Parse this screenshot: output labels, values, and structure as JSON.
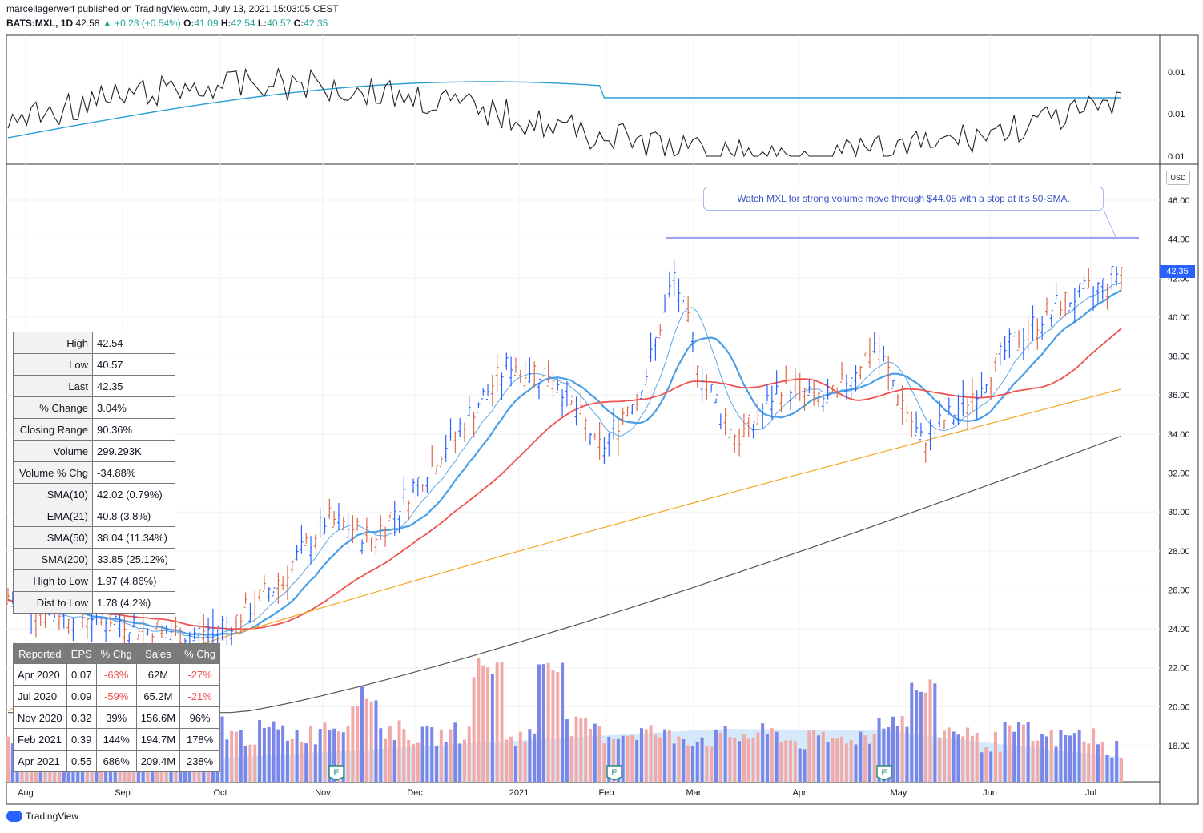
{
  "header": {
    "line1": "marcellagerwerf published on TradingView.com, July 13, 2021 15:03:05 CEST",
    "symbol": "BATS:MXL, 1D",
    "price": "42.58",
    "change": "+0.23 (+0.54%)",
    "o_label": "O:",
    "o": "41.09",
    "h_label": "H:",
    "h": "42.54",
    "l_label": "L:",
    "l": "40.57",
    "c_label": "C:",
    "c": "42.35"
  },
  "colors": {
    "up": "#2962ff",
    "down": "#e0674a",
    "sma10": "#5aa7e8",
    "ema21": "#4a9fe6",
    "sma50": "#ef5350",
    "sma200": "#f5a623",
    "sma_long": "#555555",
    "rs_line": "#222222",
    "rs_ma": "#2a9fd8"
  },
  "annotation": "Watch MXL for strong volume move through $44.05 with a stop at it's 50-SMA.",
  "currency": "USD",
  "last_price_tag": "42.35",
  "stats": [
    {
      "k": "High",
      "v": "42.54"
    },
    {
      "k": "Low",
      "v": "40.57"
    },
    {
      "k": "Last",
      "v": "42.35"
    },
    {
      "k": "% Change",
      "v": "3.04%"
    },
    {
      "k": "Closing Range",
      "v": "90.36%"
    },
    {
      "k": "Volume",
      "v": "299.293K"
    },
    {
      "k": "Volume % Chg",
      "v": "-34.88%"
    },
    {
      "k": "SMA(10)",
      "v": "42.02 (0.79%)"
    },
    {
      "k": "EMA(21)",
      "v": "40.8 (3.8%)"
    },
    {
      "k": "SMA(50)",
      "v": "38.04 (11.34%)"
    },
    {
      "k": "SMA(200)",
      "v": "33.85 (25.12%)"
    },
    {
      "k": "High to Low",
      "v": "1.97 (4.86%)"
    },
    {
      "k": "Dist to Low",
      "v": "1.78 (4.2%)"
    }
  ],
  "earnings": {
    "headers": [
      "Reported",
      "EPS",
      "% Chg",
      "Sales",
      "% Chg"
    ],
    "rows": [
      [
        "Apr 2020",
        "0.07",
        "-63%",
        "62M",
        "-27%"
      ],
      [
        "Jul 2020",
        "0.09",
        "-59%",
        "65.2M",
        "-21%"
      ],
      [
        "Nov 2020",
        "0.32",
        "39%",
        "156.6M",
        "96%"
      ],
      [
        "Feb 2021",
        "0.39",
        "144%",
        "194.7M",
        "178%"
      ],
      [
        "Apr 2021",
        "0.55",
        "686%",
        "209.4M",
        "238%"
      ]
    ]
  },
  "footer": {
    "brand": "TradingView"
  },
  "chart_data": {
    "type": "ohlc",
    "ylim": [
      16.5,
      47
    ],
    "y_ticks": [
      "46.00",
      "44.00",
      "42.00",
      "40.00",
      "38.00",
      "36.00",
      "34.00",
      "32.00",
      "30.00",
      "28.00",
      "26.00",
      "24.00",
      "22.00",
      "20.00",
      "18.00"
    ],
    "rs_ticks": [
      "0.01",
      "0.01",
      "0.01",
      "0.01"
    ],
    "x_ticks": [
      "Aug",
      "Sep",
      "Oct",
      "Nov",
      "Dec",
      "2021",
      "Feb",
      "Mar",
      "Apr",
      "May",
      "Jun",
      "Jul"
    ],
    "earnings_markers": [
      "Nov",
      "Feb",
      "May"
    ],
    "earnings_label": "E",
    "resistance_line": 44.05,
    "price_series": [
      {
        "m": 0,
        "v": 25.5
      },
      {
        "m": 0.5,
        "v": 24.8
      },
      {
        "m": 1,
        "v": 24.5
      },
      {
        "m": 1.5,
        "v": 24.0
      },
      {
        "m": 2,
        "v": 23.5
      },
      {
        "m": 2.5,
        "v": 24.3
      },
      {
        "m": 3,
        "v": 26.5
      },
      {
        "m": 3.5,
        "v": 29.5
      },
      {
        "m": 4,
        "v": 28.5
      },
      {
        "m": 4.5,
        "v": 31.5
      },
      {
        "m": 5,
        "v": 34.5
      },
      {
        "m": 5.5,
        "v": 37.5
      },
      {
        "m": 6,
        "v": 36.8
      },
      {
        "m": 6.5,
        "v": 33.0
      },
      {
        "m": 7,
        "v": 37.0
      },
      {
        "m": 7.3,
        "v": 42.0
      },
      {
        "m": 7.6,
        "v": 37.0
      },
      {
        "m": 8,
        "v": 33.5
      },
      {
        "m": 8.5,
        "v": 36.5
      },
      {
        "m": 9,
        "v": 35.5
      },
      {
        "m": 9.5,
        "v": 38.5
      },
      {
        "m": 10,
        "v": 33.5
      },
      {
        "m": 10.5,
        "v": 35.5
      },
      {
        "m": 11,
        "v": 38.5
      },
      {
        "m": 11.5,
        "v": 40.5
      },
      {
        "m": 12,
        "v": 41.5
      },
      {
        "m": 12.2,
        "v": 42.35
      }
    ],
    "volume_scale_max": 1,
    "volume": [
      0.3,
      0.25,
      0.2,
      0.35,
      0.3,
      0.28,
      0.55,
      0.3,
      0.35,
      0.32,
      0.4,
      0.65,
      0.35,
      0.3,
      0.33,
      0.9,
      0.3,
      0.95,
      0.38,
      0.32,
      0.34,
      0.3,
      0.28,
      0.3,
      0.32,
      0.26,
      0.27,
      0.3,
      0.45,
      0.7,
      0.35,
      0.25,
      0.34,
      0.28,
      0.3,
      0.2
    ]
  }
}
